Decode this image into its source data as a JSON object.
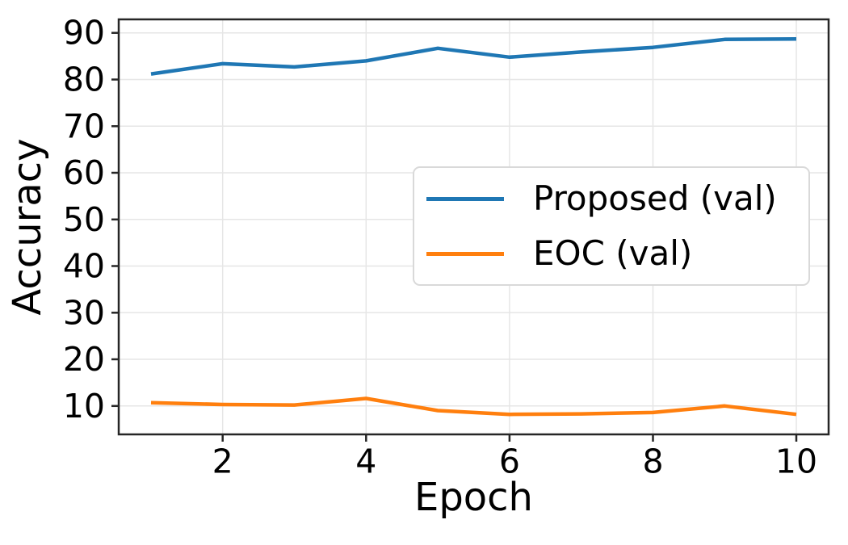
{
  "figure": {
    "background": "#ffffff"
  },
  "colors": {
    "grid": "#e6e6e6",
    "spine": "#262626",
    "tick": "#262626",
    "text": "#000000",
    "legend_border": "#d9d9d9",
    "legend_background": "#ffffff"
  },
  "chart_data": {
    "type": "line",
    "title": "",
    "xlabel": "Epoch",
    "ylabel": "Accuracy",
    "x": [
      1,
      2,
      3,
      4,
      5,
      6,
      7,
      8,
      9,
      10
    ],
    "series": [
      {
        "name": "Proposed (val)",
        "color": "#1f77b4",
        "values": [
          81.2,
          83.4,
          82.7,
          84.0,
          86.7,
          84.8,
          85.9,
          86.9,
          88.6,
          88.7
        ]
      },
      {
        "name": "EOC (val)",
        "color": "#ff7f0e",
        "values": [
          10.7,
          10.3,
          10.2,
          11.6,
          9.0,
          8.2,
          8.3,
          8.6,
          10.0,
          8.2
        ]
      }
    ],
    "xticks": [
      2,
      4,
      6,
      8,
      10
    ],
    "yticks": [
      10,
      20,
      30,
      40,
      50,
      60,
      70,
      80,
      90
    ],
    "xlim": [
      0.55,
      10.45
    ],
    "ylim": [
      3.9,
      92.9
    ],
    "grid": true,
    "legend_position": "center right"
  }
}
